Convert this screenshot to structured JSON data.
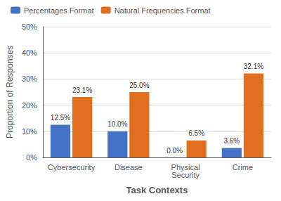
{
  "chart_data": {
    "type": "bar",
    "categories": [
      "Cybersecurity",
      "Disease",
      "Physical\nSecurity",
      "Crime"
    ],
    "series": [
      {
        "name": "Percentages Format",
        "color": "#4472C4",
        "values": [
          12.5,
          10.0,
          0.0,
          3.6
        ],
        "value_labels": [
          "12.5%",
          "10.0%",
          "0.0%",
          "3.6%"
        ]
      },
      {
        "name": "Natural Frequencies Format",
        "color": "#E07020",
        "values": [
          23.1,
          25.0,
          6.5,
          32.1
        ],
        "value_labels": [
          "23.1%",
          "25.0%",
          "6.5%",
          "32.1%"
        ]
      }
    ],
    "xlabel": "Task Contexts",
    "ylabel": "Proportion of Responses",
    "ylim": [
      0,
      50
    ],
    "yticks": [
      {
        "value": 0,
        "label": "0%"
      },
      {
        "value": 10,
        "label": "10%"
      },
      {
        "value": 20,
        "label": "20%"
      },
      {
        "value": 30,
        "label": "30%"
      },
      {
        "value": 40,
        "label": "40%"
      },
      {
        "value": 50,
        "label": "50%"
      }
    ],
    "grid": true,
    "legend": "upper left",
    "data_labels": true
  }
}
